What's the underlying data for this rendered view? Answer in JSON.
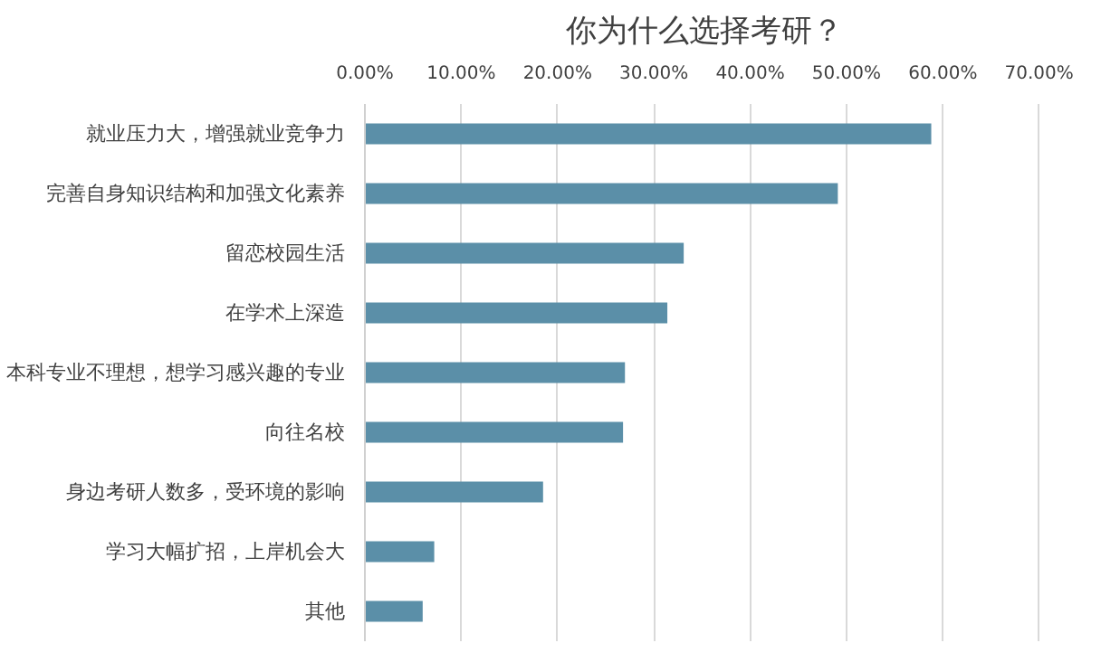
{
  "chart_data": {
    "type": "bar",
    "orientation": "horizontal",
    "title": "你为什么选择考研？",
    "categories": [
      "就业压力大，增强就业竞争力",
      "完善自身知识结构和加强文化素养",
      "留恋校园生活",
      "在学术上深造",
      "本科专业不理想，想学习感兴趣的专业",
      "向往名校",
      "身边考研人数多，受环境的影响",
      "学习大幅扩招，上岸机会大",
      "其他"
    ],
    "values": [
      58.8,
      49.1,
      33.1,
      31.4,
      27.0,
      26.8,
      18.5,
      7.2,
      6.0
    ],
    "color": "#5b8fa8",
    "xlim": [
      0,
      70
    ],
    "xticks": [
      {
        "value": 0,
        "label": "0.00%"
      },
      {
        "value": 10,
        "label": "10.00%"
      },
      {
        "value": 20,
        "label": "20.00%"
      },
      {
        "value": 30,
        "label": "30.00%"
      },
      {
        "value": 40,
        "label": "40.00%"
      },
      {
        "value": 50,
        "label": "50.00%"
      },
      {
        "value": 60,
        "label": "60.00%"
      },
      {
        "value": 70,
        "label": "70.00%"
      }
    ],
    "grid": "x"
  }
}
